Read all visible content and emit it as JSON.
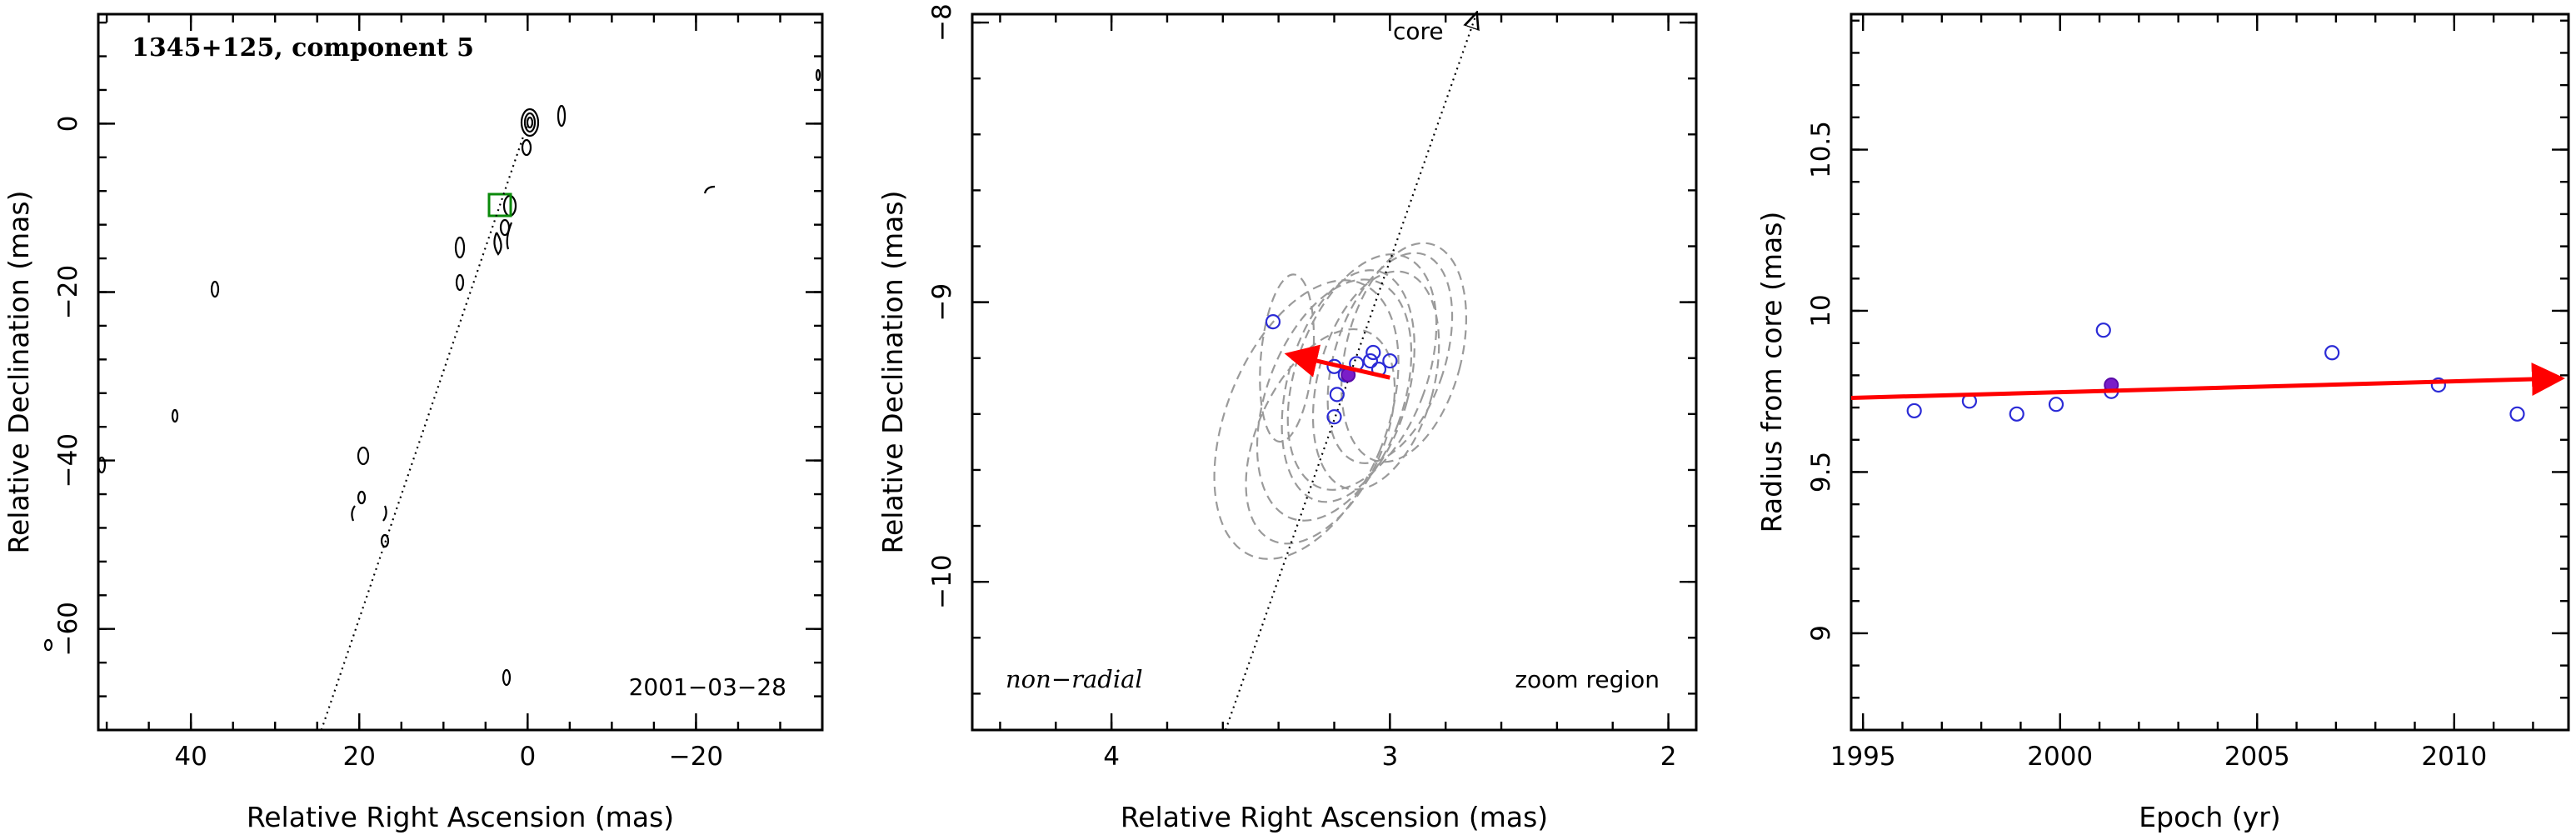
{
  "panels": [
    {
      "id": "map",
      "title": "1345+125, component 5",
      "date": "2001−03−28",
      "xlabel": "Relative Right Ascension (mas)",
      "ylabel": "Relative Declination (mas)",
      "xlim": [
        51,
        -35
      ],
      "ylim": [
        -72,
        13
      ],
      "xticks": [
        40,
        20,
        0,
        -20
      ],
      "xtick_labels": [
        "40",
        "20",
        "0",
        "−20"
      ],
      "yticks": [
        0,
        -20,
        -40,
        -60
      ],
      "ytick_labels": [
        "0",
        "−20",
        "−40",
        "−60"
      ]
    },
    {
      "id": "zoom",
      "corner_left": "non−radial",
      "corner_right": "zoom region",
      "arrow_label": "core",
      "xlabel": "Relative Right Ascension (mas)",
      "ylabel": "Relative Declination (mas)",
      "xlim": [
        4.5,
        1.9
      ],
      "ylim": [
        -10.53,
        -7.97
      ],
      "xticks": [
        4,
        3,
        2
      ],
      "xtick_labels": [
        "4",
        "3",
        "2"
      ],
      "yticks": [
        -8,
        -9,
        -10
      ],
      "ytick_labels": [
        "−8",
        "−9",
        "−10"
      ]
    },
    {
      "id": "radius",
      "xlabel": "Epoch (yr)",
      "ylabel": "Radius from core (mas)",
      "xlim": [
        1994.7,
        2012.9
      ],
      "ylim": [
        8.7,
        10.92
      ],
      "xticks": [
        1995,
        2000,
        2005,
        2010
      ],
      "xtick_labels": [
        "1995",
        "2000",
        "2005",
        "2010"
      ],
      "yticks": [
        9,
        9.5,
        10,
        10.5
      ],
      "ytick_labels": [
        "9",
        "9.5",
        "10",
        "10.5"
      ]
    }
  ],
  "colors": {
    "points": "#2b2bd6",
    "reference_point": "#7a1ec8",
    "velocity_vector": "#ff0000",
    "ellipses": "#9a9a9a",
    "contours": "#000000"
  },
  "chart_data": [
    {
      "type": "scatter",
      "panel": "map",
      "description_source": "contour map of source with component box",
      "core": {
        "x": 0,
        "y": 0
      },
      "component_position": {
        "x": 3.15,
        "y": -9.25
      },
      "core_direction_line": {
        "from": {
          "x": 24.5,
          "y": -72
        },
        "to": {
          "x": 0,
          "y": 0
        }
      }
    },
    {
      "type": "scatter",
      "panel": "zoom",
      "points": [
        {
          "x": 3.42,
          "y": -9.07
        },
        {
          "x": 3.2,
          "y": -9.23
        },
        {
          "x": 3.12,
          "y": -9.22
        },
        {
          "x": 3.06,
          "y": -9.18
        },
        {
          "x": 3.07,
          "y": -9.21
        },
        {
          "x": 3.04,
          "y": -9.24
        },
        {
          "x": 3.0,
          "y": -9.21
        },
        {
          "x": 3.16,
          "y": -9.26
        },
        {
          "x": 3.19,
          "y": -9.33
        },
        {
          "x": 3.2,
          "y": -9.41
        }
      ],
      "reference_point": {
        "x": 3.15,
        "y": -9.26
      },
      "velocity_vector": {
        "from": {
          "x": 3.0,
          "y": -9.27
        },
        "to": {
          "x": 3.35,
          "y": -9.19
        }
      },
      "core_direction_line": {
        "from": {
          "x": 3.59,
          "y": -10.53
        },
        "to": {
          "x": 2.69,
          "y": -7.97
        }
      },
      "beam_ellipses": [
        {
          "cx": 3.3,
          "cy": -9.42,
          "rx": 0.55,
          "ry": 1.05,
          "rot": -22
        },
        {
          "cx": 3.2,
          "cy": -9.35,
          "rx": 0.47,
          "ry": 0.9,
          "rot": -20
        },
        {
          "cx": 3.15,
          "cy": -9.3,
          "rx": 0.42,
          "ry": 0.85,
          "rot": -15
        },
        {
          "cx": 3.05,
          "cy": -9.28,
          "rx": 0.4,
          "ry": 0.8,
          "rot": -15
        },
        {
          "cx": 3.0,
          "cy": -9.2,
          "rx": 0.38,
          "ry": 0.78,
          "rot": -18
        },
        {
          "cx": 2.95,
          "cy": -9.18,
          "rx": 0.4,
          "ry": 0.8,
          "rot": -14
        },
        {
          "cx": 3.1,
          "cy": -9.25,
          "rx": 0.45,
          "ry": 0.88,
          "rot": -20
        },
        {
          "cx": 3.25,
          "cy": -9.48,
          "rx": 0.43,
          "ry": 0.82,
          "rot": -25
        },
        {
          "cx": 3.37,
          "cy": -9.2,
          "rx": 0.18,
          "ry": 0.6,
          "rot": -5
        }
      ]
    },
    {
      "type": "scatter",
      "panel": "radius",
      "x": [
        1996.3,
        1997.7,
        1998.9,
        1999.9,
        2001.1,
        2001.3,
        2006.9,
        2009.6,
        2011.6
      ],
      "y": [
        9.69,
        9.72,
        9.68,
        9.71,
        9.94,
        9.75,
        9.87,
        9.77,
        9.68
      ],
      "reference_point": {
        "x": 2001.3,
        "y": 9.77
      },
      "velocity_vector": {
        "from": {
          "x": 1994.7,
          "y": 9.73
        },
        "to": {
          "x": 2012.9,
          "y": 9.79
        }
      }
    }
  ]
}
